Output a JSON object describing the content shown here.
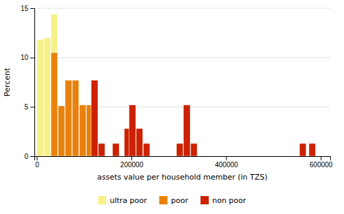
{
  "chart_data": {
    "type": "bar",
    "xlabel": "assets value per household member (in TZS)",
    "ylabel": "Percent",
    "xlim": [
      -5000,
      620000
    ],
    "xticks": [
      0,
      200000,
      400000,
      600000
    ],
    "ylim": [
      0,
      15
    ],
    "yticks": [
      0,
      5,
      10,
      15
    ],
    "bar_width": 14000,
    "grid": true,
    "legend": "bottom",
    "series": [
      {
        "name": "ultra poor",
        "color": "#f5f08a",
        "x": [
          0,
          15000,
          30000
        ],
        "values": [
          11.8,
          12.0,
          14.4
        ]
      },
      {
        "name": "poor",
        "color": "#e8820c",
        "x": [
          30000,
          45000,
          60000,
          75000,
          90000,
          105000
        ],
        "values": [
          10.5,
          5.1,
          7.7,
          7.7,
          5.2,
          5.2
        ]
      },
      {
        "name": "non poor",
        "color": "#cc2200",
        "x": [
          115000,
          130000,
          160000,
          185000,
          195000,
          210000,
          225000,
          295000,
          310000,
          325000,
          555000,
          575000
        ],
        "values": [
          7.7,
          1.3,
          1.3,
          2.8,
          5.2,
          2.8,
          1.3,
          1.3,
          5.2,
          1.3,
          1.3,
          1.3
        ]
      }
    ]
  }
}
